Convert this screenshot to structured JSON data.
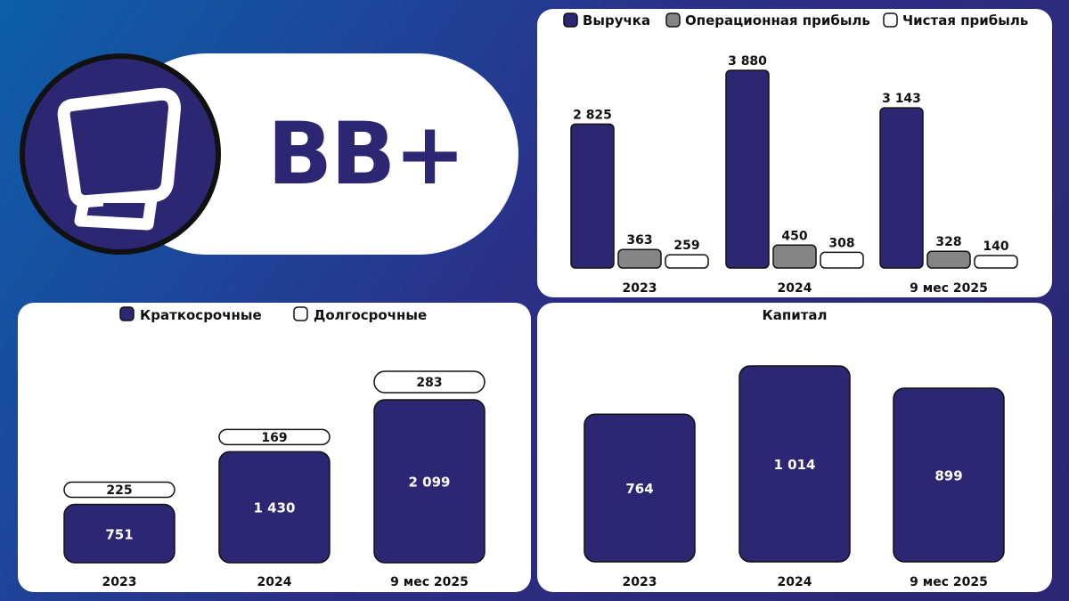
{
  "ticker": "BB+",
  "colors": {
    "revenue": "#2c2673",
    "operating": "#858585",
    "net": "#ffffff",
    "brand": "#2c2673"
  },
  "logo": {
    "icon": "monitor-icon"
  },
  "chart_data": [
    {
      "type": "bar",
      "title": "",
      "categories": [
        "2023",
        "2024",
        "9 мес 2025"
      ],
      "legend_position": "top",
      "series": [
        {
          "name": "Выручка",
          "values": [
            2825,
            3880,
            3143
          ],
          "labels": [
            "2 825",
            "3 880",
            "3 143"
          ],
          "color": "#2c2673"
        },
        {
          "name": "Операционная прибыль",
          "values": [
            363,
            450,
            328
          ],
          "labels": [
            "363",
            "450",
            "328"
          ],
          "color": "#858585"
        },
        {
          "name": "Чистая прибыль",
          "values": [
            259,
            308,
            140
          ],
          "labels": [
            "259",
            "308",
            "140"
          ],
          "color": "#ffffff"
        }
      ]
    },
    {
      "type": "bar",
      "stacked": true,
      "title": "",
      "categories": [
        "2023",
        "2024",
        "9 мес 2025"
      ],
      "legend_position": "top",
      "series": [
        {
          "name": "Краткосрочные",
          "values": [
            751,
            1430,
            2099
          ],
          "labels": [
            "751",
            "1 430",
            "2 099"
          ],
          "color": "#2c2673"
        },
        {
          "name": "Долгосрочные",
          "values": [
            225,
            169,
            283
          ],
          "labels": [
            "225",
            "169",
            "283"
          ],
          "color": "#ffffff"
        }
      ]
    },
    {
      "type": "bar",
      "title": "Капитал",
      "categories": [
        "2023",
        "2024",
        "9 мес 2025"
      ],
      "series": [
        {
          "name": "",
          "values": [
            764,
            1014,
            899
          ],
          "labels": [
            "764",
            "1 014",
            "899"
          ],
          "color": "#2c2673"
        }
      ]
    }
  ]
}
